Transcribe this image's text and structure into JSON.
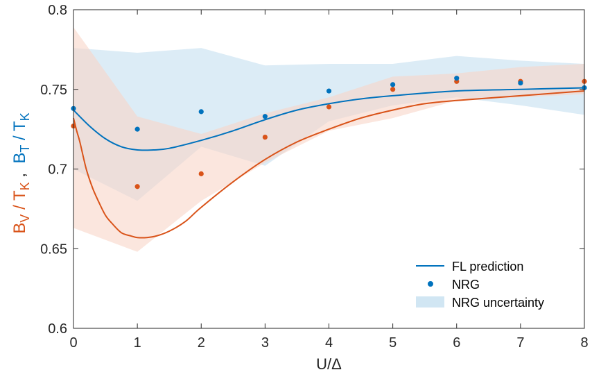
{
  "chart_data": {
    "type": "line",
    "xlabel": "U/Δ",
    "ylabel_parts": [
      {
        "text": "B",
        "color_key": "orange"
      },
      {
        "text": "V",
        "sub": true,
        "color_key": "orange"
      },
      {
        "text": " / T",
        "color_key": "orange"
      },
      {
        "text": "K",
        "sub": true,
        "color_key": "orange"
      },
      {
        "text": " ,  ",
        "color_key": "black"
      },
      {
        "text": "B",
        "color_key": "blue"
      },
      {
        "text": "T",
        "sub": true,
        "color_key": "blue"
      },
      {
        "text": " / T",
        "color_key": "blue"
      },
      {
        "text": "K",
        "sub": true,
        "color_key": "blue"
      }
    ],
    "xlim": [
      0,
      8
    ],
    "ylim": [
      0.6,
      0.8
    ],
    "xticks": [
      0,
      1,
      2,
      3,
      4,
      5,
      6,
      7,
      8
    ],
    "xtick_labels": [
      "0",
      "1",
      "2",
      "3",
      "4",
      "5",
      "6",
      "7",
      "8"
    ],
    "yticks": [
      0.6,
      0.65,
      0.7,
      0.75,
      0.8
    ],
    "ytick_labels": [
      "0.6",
      "0.65",
      "0.7",
      "0.75",
      "0.8"
    ],
    "colors": {
      "blue": "#0072BD",
      "orange": "#D95319",
      "blue_band": "#C5E0F0",
      "orange_band": "#F8D5C8",
      "black": "#262626"
    },
    "series": [
      {
        "name": "B_T/T_K",
        "color_key": "blue",
        "band_color_key": "blue_band",
        "fl_curve": {
          "x": [
            0,
            0.25,
            0.5,
            0.75,
            1.0,
            1.25,
            1.5,
            2.0,
            2.5,
            3.0,
            3.5,
            4.0,
            4.5,
            5.0,
            6.0,
            7.0,
            8.0
          ],
          "y": [
            0.737,
            0.727,
            0.719,
            0.714,
            0.712,
            0.712,
            0.713,
            0.718,
            0.724,
            0.731,
            0.737,
            0.741,
            0.744,
            0.746,
            0.749,
            0.75,
            0.751
          ]
        },
        "nrg_points": {
          "x": [
            0,
            1,
            2,
            3,
            4,
            5,
            6,
            7,
            8
          ],
          "y": [
            0.738,
            0.725,
            0.736,
            0.733,
            0.749,
            0.753,
            0.757,
            0.754,
            0.751
          ]
        },
        "uncertainty_band": {
          "x": [
            0,
            1,
            2,
            3,
            4,
            5,
            6,
            7,
            8
          ],
          "upper": [
            0.776,
            0.773,
            0.776,
            0.765,
            0.766,
            0.766,
            0.771,
            0.768,
            0.766
          ],
          "lower": [
            0.7,
            0.68,
            0.714,
            0.702,
            0.73,
            0.74,
            0.745,
            0.74,
            0.734
          ]
        }
      },
      {
        "name": "B_V/T_K",
        "color_key": "orange",
        "band_color_key": "orange_band",
        "fl_curve": {
          "x": [
            0,
            0.05,
            0.1,
            0.2,
            0.3,
            0.4,
            0.5,
            0.6,
            0.75,
            0.9,
            1.0,
            1.15,
            1.3,
            1.5,
            1.75,
            2.0,
            2.5,
            3.0,
            3.5,
            4.0,
            4.5,
            5.0,
            5.5,
            6.0,
            7.0,
            8.0
          ],
          "y": [
            0.732,
            0.724,
            0.717,
            0.7,
            0.688,
            0.679,
            0.671,
            0.666,
            0.66,
            0.658,
            0.657,
            0.657,
            0.658,
            0.661,
            0.667,
            0.676,
            0.692,
            0.706,
            0.717,
            0.725,
            0.732,
            0.737,
            0.741,
            0.743,
            0.746,
            0.749
          ]
        },
        "nrg_points": {
          "x": [
            0,
            1,
            2,
            3,
            4,
            5,
            6,
            7,
            8
          ],
          "y": [
            0.727,
            0.689,
            0.697,
            0.72,
            0.739,
            0.75,
            0.755,
            0.755,
            0.755
          ]
        },
        "uncertainty_band": {
          "x": [
            0,
            1,
            2,
            3,
            4,
            5,
            6,
            7,
            8
          ],
          "upper": [
            0.789,
            0.733,
            0.722,
            0.735,
            0.745,
            0.758,
            0.76,
            0.764,
            0.766
          ],
          "lower": [
            0.663,
            0.648,
            0.68,
            0.704,
            0.724,
            0.732,
            0.743,
            0.745,
            0.747
          ]
        }
      }
    ],
    "legend": {
      "position": "bottom-right",
      "entries": [
        {
          "label": "FL prediction",
          "kind": "line"
        },
        {
          "label": "NRG",
          "kind": "marker"
        },
        {
          "label": "NRG uncertainty",
          "kind": "patch"
        }
      ]
    }
  }
}
